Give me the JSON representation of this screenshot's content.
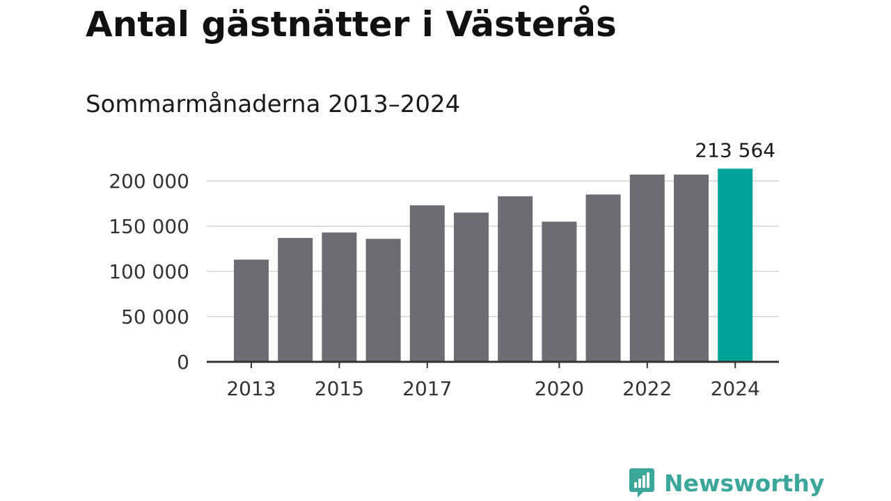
{
  "title": "Antal gästnätter i Västerås",
  "subtitle": "Sommarmånaderna 2013–2024",
  "brand": {
    "name": "Newsworthy",
    "color": "#3ba79c"
  },
  "chart_data": {
    "type": "bar",
    "categories": [
      "2013",
      "2014",
      "2015",
      "2016",
      "2017",
      "2018",
      "2019",
      "2020",
      "2021",
      "2022",
      "2023",
      "2024"
    ],
    "x_tick_labels": [
      "2013",
      "2015",
      "2017",
      "2020",
      "2022",
      "2024"
    ],
    "values": [
      113000,
      137000,
      143000,
      136000,
      173000,
      165000,
      183000,
      155000,
      185000,
      207000,
      207000,
      213564
    ],
    "y_ticks": [
      0,
      50000,
      100000,
      150000,
      200000
    ],
    "y_tick_labels": [
      "0",
      "50 000",
      "100 000",
      "150 000",
      "200 000"
    ],
    "ylim": [
      0,
      200000
    ],
    "grid": true,
    "annotation": {
      "category": "2024",
      "text": "213 564"
    },
    "colors": {
      "bar": "#6d6c72",
      "highlight": "#00a398",
      "grid": "#dddddd",
      "axis": "#333333"
    }
  }
}
